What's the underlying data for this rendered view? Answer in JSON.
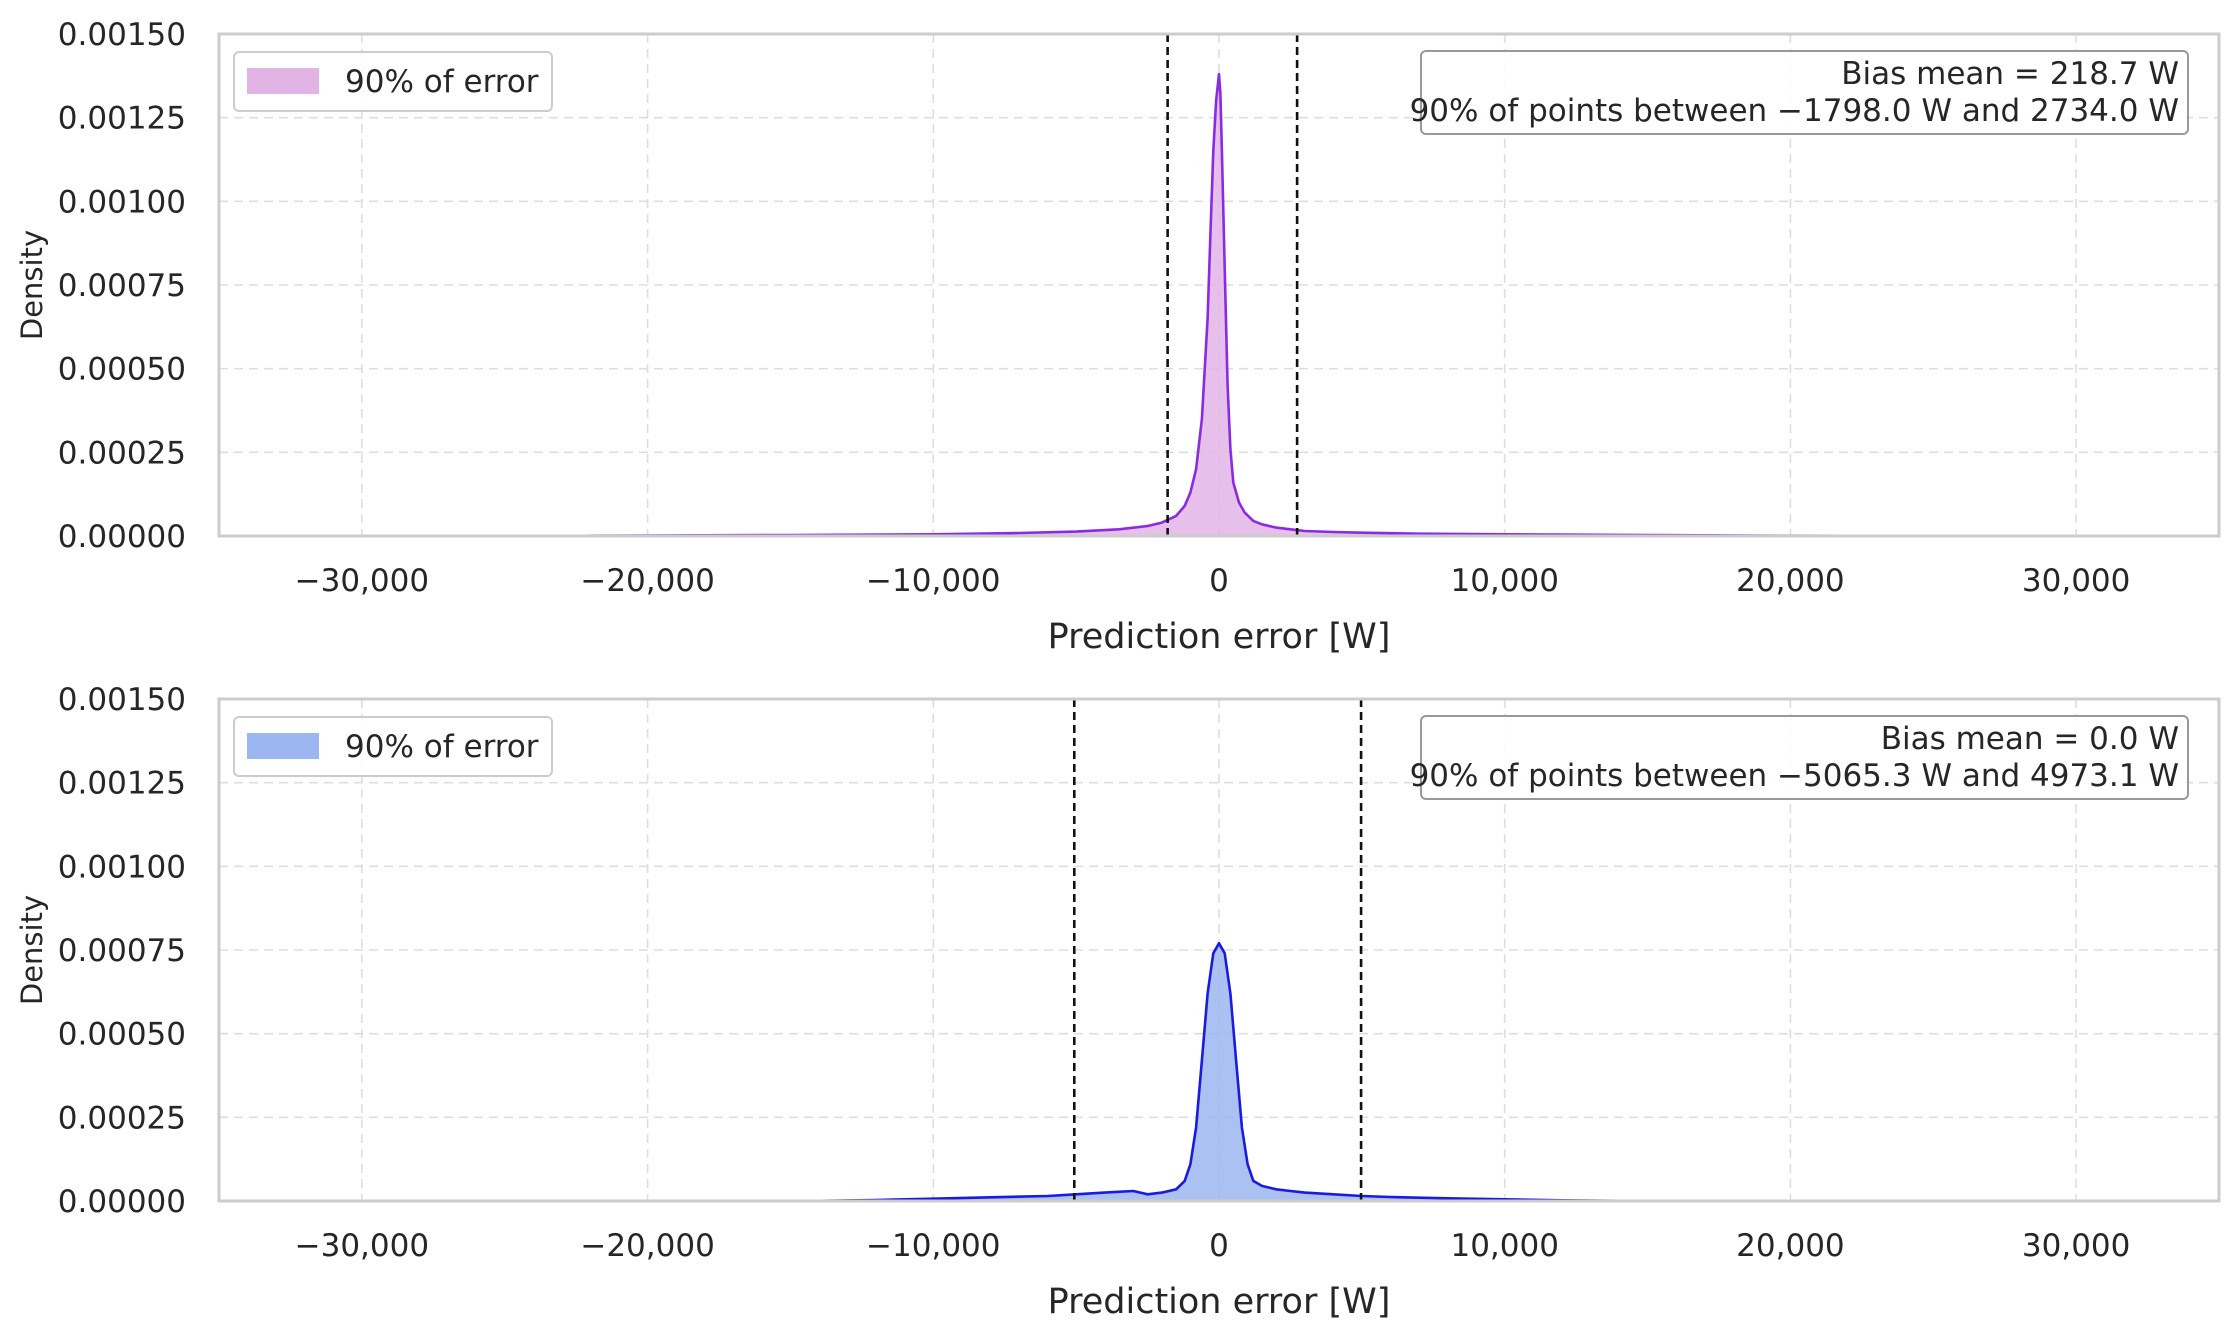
{
  "chart_data": [
    {
      "type": "area",
      "title": "",
      "xlabel": "Prediction error [W]",
      "ylabel": "Density",
      "xlim": [
        -35000,
        35000
      ],
      "ylim": [
        0,
        0.0015
      ],
      "xticks": [
        -30000,
        -20000,
        -10000,
        0,
        10000,
        20000,
        30000
      ],
      "xtick_labels": [
        "−30,000",
        "−20,000",
        "−10,000",
        "0",
        "10,000",
        "20,000",
        "30,000"
      ],
      "yticks": [
        0,
        0.00025,
        0.0005,
        0.00075,
        0.001,
        0.00125,
        0.0015
      ],
      "ytick_labels": [
        "0.00000",
        "0.00025",
        "0.00050",
        "0.00075",
        "0.00100",
        "0.00125",
        "0.00150"
      ],
      "grid": true,
      "legend_position": "top-left",
      "legend_label": "90% of error",
      "fill_color": "#e2b4e6",
      "line_color": "#8a2be2",
      "annotation_lines": [
        "Bias mean = 218.7 W",
        "90% of points between −1798.0 W and 2734.0 W"
      ],
      "vlines": [
        -1798.0,
        2734.0
      ],
      "series": [
        {
          "x": [
            -22000,
            -15000,
            -10000,
            -7000,
            -5000,
            -3500,
            -2500,
            -2000,
            -1500,
            -1200,
            -1000,
            -800,
            -600,
            -400,
            -300,
            -200,
            -100,
            0,
            50,
            100,
            200,
            300,
            400,
            500,
            700,
            900,
            1200,
            1500,
            2000,
            2500,
            3000,
            4000,
            5000,
            7000,
            10000,
            15000,
            20000,
            22000
          ],
          "y": [
            1e-06,
            3e-06,
            5e-06,
            9e-06,
            1.3e-05,
            2e-05,
            3e-05,
            4e-05,
            6e-05,
            9e-05,
            0.00013,
            0.0002,
            0.00035,
            0.00065,
            0.0009,
            0.00115,
            0.0013,
            0.00138,
            0.00132,
            0.00115,
            0.0008,
            0.00045,
            0.00026,
            0.00016,
            0.0001,
            7e-05,
            4.5e-05,
            3.5e-05,
            2.5e-05,
            2e-05,
            1.5e-05,
            1.2e-05,
            1e-05,
            7e-06,
            5e-06,
            3e-06,
            1e-06,
            5e-07
          ]
        }
      ]
    },
    {
      "type": "area",
      "title": "",
      "xlabel": "Prediction error [W]",
      "ylabel": "Density",
      "xlim": [
        -35000,
        35000
      ],
      "ylim": [
        0,
        0.0015
      ],
      "xticks": [
        -30000,
        -20000,
        -10000,
        0,
        10000,
        20000,
        30000
      ],
      "xtick_labels": [
        "−30,000",
        "−20,000",
        "−10,000",
        "0",
        "10,000",
        "20,000",
        "30,000"
      ],
      "yticks": [
        0,
        0.00025,
        0.0005,
        0.00075,
        0.001,
        0.00125,
        0.0015
      ],
      "ytick_labels": [
        "0.00000",
        "0.00025",
        "0.00050",
        "0.00075",
        "0.00100",
        "0.00125",
        "0.00150"
      ],
      "grid": true,
      "legend_position": "top-left",
      "legend_label": "90% of error",
      "fill_color": "#9bb6f0",
      "line_color": "#1a1ae0",
      "annotation_lines": [
        "Bias mean = 0.0 W",
        "90% of points between −5065.3 W and 4973.1 W"
      ],
      "vlines": [
        -5065.3,
        4973.1
      ],
      "series": [
        {
          "x": [
            -14000,
            -12000,
            -10000,
            -8000,
            -6000,
            -5000,
            -4000,
            -3000,
            -2500,
            -2000,
            -1500,
            -1200,
            -1000,
            -800,
            -600,
            -400,
            -200,
            0,
            200,
            400,
            600,
            800,
            1000,
            1200,
            1500,
            2000,
            2500,
            3000,
            4000,
            5000,
            6000,
            8000,
            10000,
            12000,
            14000
          ],
          "y": [
            5e-07,
            3e-06,
            7e-06,
            1.1e-05,
            1.5e-05,
            2e-05,
            2.5e-05,
            3e-05,
            2e-05,
            2.5e-05,
            3.5e-05,
            6e-05,
            0.00011,
            0.00022,
            0.00042,
            0.00062,
            0.00074,
            0.00077,
            0.00074,
            0.00062,
            0.00042,
            0.00022,
            0.00011,
            6e-05,
            4.5e-05,
            3.5e-05,
            3e-05,
            2.5e-05,
            2e-05,
            1.5e-05,
            1.2e-05,
            8e-06,
            5e-06,
            2e-06,
            5e-07
          ]
        }
      ]
    }
  ]
}
